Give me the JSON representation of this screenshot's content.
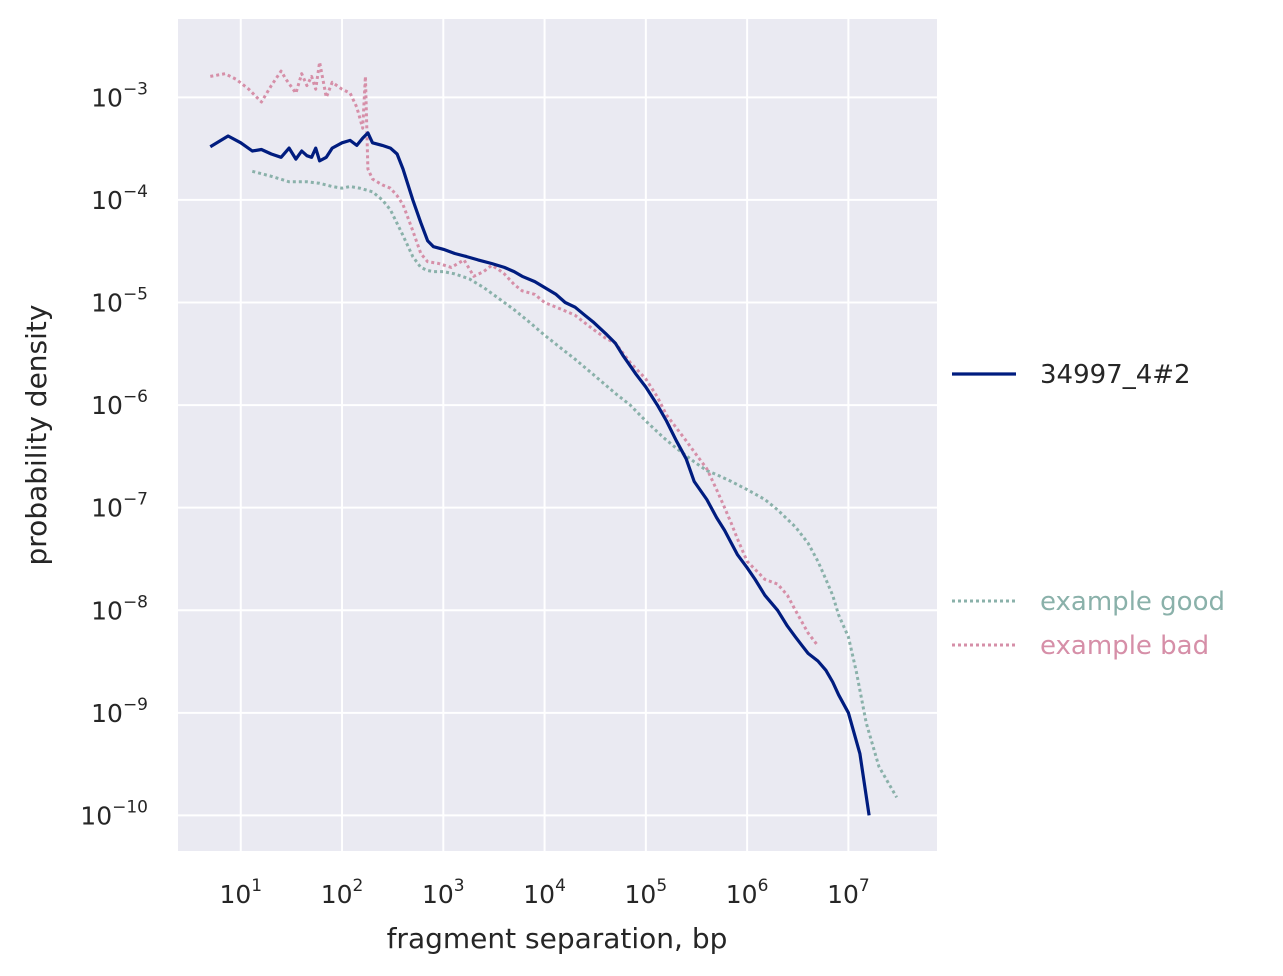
{
  "chart_data": {
    "type": "line",
    "xlabel": "fragment separation, bp",
    "ylabel": "probability density",
    "xscale": "log",
    "yscale": "log",
    "xlim": [
      2.4,
      75000000
    ],
    "ylim": [
      4.5e-11,
      0.0058
    ],
    "grid": true,
    "x_ticks": [
      {
        "base": "10",
        "exp": "1",
        "value": 10
      },
      {
        "base": "10",
        "exp": "2",
        "value": 100
      },
      {
        "base": "10",
        "exp": "3",
        "value": 1000
      },
      {
        "base": "10",
        "exp": "4",
        "value": 10000
      },
      {
        "base": "10",
        "exp": "5",
        "value": 100000
      },
      {
        "base": "10",
        "exp": "6",
        "value": 1000000
      },
      {
        "base": "10",
        "exp": "7",
        "value": 10000000
      }
    ],
    "y_ticks": [
      {
        "base": "10",
        "exp": "−3",
        "value": 0.001
      },
      {
        "base": "10",
        "exp": "−4",
        "value": 0.0001
      },
      {
        "base": "10",
        "exp": "−5",
        "value": 1e-05
      },
      {
        "base": "10",
        "exp": "−6",
        "value": 1e-06
      },
      {
        "base": "10",
        "exp": "−7",
        "value": 1e-07
      },
      {
        "base": "10",
        "exp": "−8",
        "value": 1e-08
      },
      {
        "base": "10",
        "exp": "−9",
        "value": 1e-09
      },
      {
        "base": "10",
        "exp": "−10",
        "value": 1e-10
      }
    ],
    "legend": {
      "placement": "right",
      "primary": [
        "34997_4#2"
      ],
      "examples": [
        "example good",
        "example bad"
      ]
    },
    "series": [
      {
        "name": "example good",
        "color": "#8ab1aa",
        "style": "dotted",
        "x": [
          13,
          20,
          30,
          45,
          60,
          80,
          100,
          120,
          150,
          200,
          250,
          300,
          400,
          500,
          600,
          700,
          800,
          1000,
          1300,
          1800,
          2500,
          3500,
          5000,
          7000,
          10000,
          15000,
          20000,
          30000,
          50000,
          70000,
          100000,
          150000,
          200000,
          300000,
          400000,
          500000,
          700000,
          1000000,
          1500000,
          2000000,
          3000000,
          4000000,
          5000000,
          6000000,
          7000000,
          8000000,
          10000000,
          12000000,
          15000000,
          20000000,
          30000000
        ],
        "y": [
          0.00019,
          0.00017,
          0.00015,
          0.00015,
          0.000145,
          0.000135,
          0.00013,
          0.000135,
          0.00013,
          0.00012,
          0.0001,
          8e-05,
          4.5e-05,
          2.8e-05,
          2.2e-05,
          2.05e-05,
          2e-05,
          2e-05,
          1.9e-05,
          1.7e-05,
          1.4e-05,
          1.1e-05,
          8.5e-06,
          6.5e-06,
          4.8e-06,
          3.5e-06,
          2.8e-06,
          2e-06,
          1.3e-06,
          1e-06,
          7e-07,
          4.8e-07,
          3.8e-07,
          2.8e-07,
          2.3e-07,
          2.1e-07,
          1.8e-07,
          1.5e-07,
          1.2e-07,
          9.5e-08,
          6.5e-08,
          4.5e-08,
          3e-08,
          2e-08,
          1.4e-08,
          9e-09,
          5.5e-09,
          2.5e-09,
          8e-10,
          3e-10,
          1.5e-10
        ]
      },
      {
        "name": "example bad",
        "color": "#d68fa8",
        "style": "dotted",
        "x": [
          5,
          7,
          9,
          12,
          16,
          20,
          25,
          28,
          35,
          40,
          45,
          50,
          55,
          60,
          70,
          80,
          100,
          120,
          140,
          160,
          170,
          180,
          200,
          250,
          300,
          350,
          400,
          500,
          600,
          700,
          900,
          1200,
          1600,
          2000,
          2500,
          3000,
          3500,
          4000,
          5000,
          6000,
          8000,
          10000,
          15000,
          20000,
          30000,
          40000,
          50000,
          70000,
          100000,
          130000,
          160000,
          200000,
          250000,
          300000,
          400000,
          500000,
          600000,
          700000,
          800000,
          1000000,
          1200000,
          1500000,
          2000000,
          2500000,
          3000000,
          4000000,
          5000000
        ],
        "y": [
          0.0016,
          0.0017,
          0.0015,
          0.0012,
          0.0009,
          0.0013,
          0.0018,
          0.0015,
          0.0011,
          0.0017,
          0.0013,
          0.0016,
          0.0012,
          0.0022,
          0.001,
          0.0014,
          0.0012,
          0.0011,
          0.0008,
          0.0005,
          0.0016,
          0.0002,
          0.00016,
          0.00014,
          0.00013,
          0.00011,
          9e-05,
          5e-05,
          3e-05,
          2.5e-05,
          2.4e-05,
          2.2e-05,
          2.6e-05,
          1.8e-05,
          2e-05,
          2.3e-05,
          2.1e-05,
          1.9e-05,
          1.5e-05,
          1.3e-05,
          1.2e-05,
          1e-05,
          8.5e-06,
          7.5e-06,
          5.5e-06,
          4.5e-06,
          4e-06,
          2.6e-06,
          1.8e-06,
          1.2e-06,
          8e-07,
          6e-07,
          4.5e-07,
          3.5e-07,
          2.4e-07,
          1.5e-07,
          1e-07,
          7e-08,
          5e-08,
          3e-08,
          2.5e-08,
          2e-08,
          1.8e-08,
          1.4e-08,
          1e-08,
          6e-09,
          4.5e-09
        ]
      },
      {
        "name": "34997_4#2",
        "color": "#001c7f",
        "style": "solid",
        "x": [
          5,
          7.5,
          10,
          13,
          16,
          20,
          25,
          30,
          35,
          40,
          45,
          50,
          55,
          60,
          70,
          80,
          100,
          120,
          140,
          160,
          180,
          200,
          250,
          300,
          350,
          400,
          500,
          600,
          700,
          800,
          1000,
          1300,
          1700,
          2200,
          3000,
          4000,
          5000,
          6000,
          8000,
          10000,
          13000,
          16000,
          20000,
          25000,
          30000,
          40000,
          50000,
          60000,
          80000,
          100000,
          130000,
          160000,
          200000,
          250000,
          300000,
          400000,
          500000,
          600000,
          700000,
          800000,
          1000000,
          1200000,
          1500000,
          2000000,
          2500000,
          3000000,
          3500000,
          4000000,
          5000000,
          6000000,
          7000000,
          8000000,
          10000000,
          13000000,
          16000000
        ],
        "y": [
          0.00033,
          0.00042,
          0.00036,
          0.0003,
          0.00031,
          0.00028,
          0.00026,
          0.00032,
          0.00025,
          0.0003,
          0.00027,
          0.00026,
          0.00032,
          0.00024,
          0.00026,
          0.00032,
          0.00036,
          0.00038,
          0.00034,
          0.0004,
          0.00045,
          0.00036,
          0.00034,
          0.00032,
          0.00028,
          0.0002,
          0.0001,
          6e-05,
          4e-05,
          3.5e-05,
          3.3e-05,
          3e-05,
          2.8e-05,
          2.6e-05,
          2.4e-05,
          2.2e-05,
          2e-05,
          1.8e-05,
          1.6e-05,
          1.4e-05,
          1.2e-05,
          1e-05,
          9e-06,
          7.5e-06,
          6.5e-06,
          5e-06,
          4e-06,
          3e-06,
          2e-06,
          1.5e-06,
          1e-06,
          7e-07,
          4.5e-07,
          3e-07,
          1.8e-07,
          1.2e-07,
          8e-08,
          6e-08,
          4.5e-08,
          3.5e-08,
          2.6e-08,
          2e-08,
          1.4e-08,
          1e-08,
          7e-09,
          5.5e-09,
          4.5e-09,
          3.8e-09,
          3.2e-09,
          2.6e-09,
          2e-09,
          1.5e-09,
          1e-09,
          4e-10,
          1e-10
        ]
      }
    ]
  }
}
